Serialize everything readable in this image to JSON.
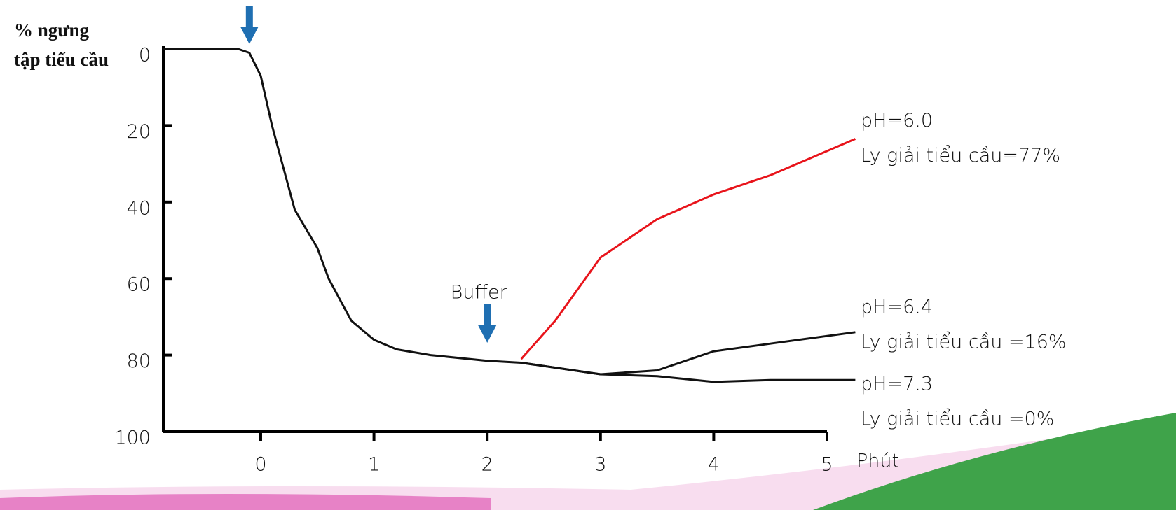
{
  "chart_data": {
    "type": "line",
    "y_label": [
      "% ngưng",
      "tập tiểu cầu"
    ],
    "x_label": "Phút",
    "xlim": [
      -0.86,
      5
    ],
    "xticks": [
      0,
      1,
      2,
      3,
      4,
      5
    ],
    "ylim": [
      0,
      100
    ],
    "yticks": [
      0,
      20,
      40,
      60,
      80,
      100
    ],
    "y_inverted": true,
    "series": [
      {
        "color": "#111111",
        "x": [
          -0.86,
          -0.2,
          -0.1,
          0,
          0.1,
          0.2,
          0.3,
          0.4,
          0.5,
          0.6,
          0.8,
          1.0,
          1.2,
          1.5,
          2.0,
          2.3
        ],
        "values": [
          0,
          0,
          1,
          7,
          20,
          31,
          42,
          47,
          52,
          60,
          71,
          76,
          78.5,
          80,
          81.5,
          82
        ]
      },
      {
        "name": "pH=6.0",
        "note": "Ly giải tiểu cầu=77%",
        "color": "#e8141b",
        "x": [
          2.3,
          2.6,
          3.0,
          3.5,
          4.0,
          4.5,
          5.25
        ],
        "values": [
          81,
          71,
          54.5,
          44.5,
          38,
          33,
          23.5
        ]
      },
      {
        "name": "pH=6.4",
        "note": "Ly giải tiểu cầu =16%",
        "color": "#111111",
        "x": [
          2.3,
          3.0,
          3.5,
          4.0,
          4.5,
          5.25
        ],
        "values": [
          82,
          85,
          84,
          79,
          77,
          74
        ]
      },
      {
        "name": "pH=7.3",
        "note": "Ly giải tiểu cầu =0%",
        "color": "#111111",
        "x": [
          2.3,
          3.0,
          3.5,
          4.0,
          4.5,
          5.25
        ],
        "values": [
          82,
          85,
          85.5,
          87,
          86.5,
          86.5
        ]
      }
    ],
    "annotations": [
      {
        "x": -0.1
      },
      {
        "x": 2,
        "text": "Buffer"
      }
    ],
    "arrow_color": "#1f6fb2"
  }
}
